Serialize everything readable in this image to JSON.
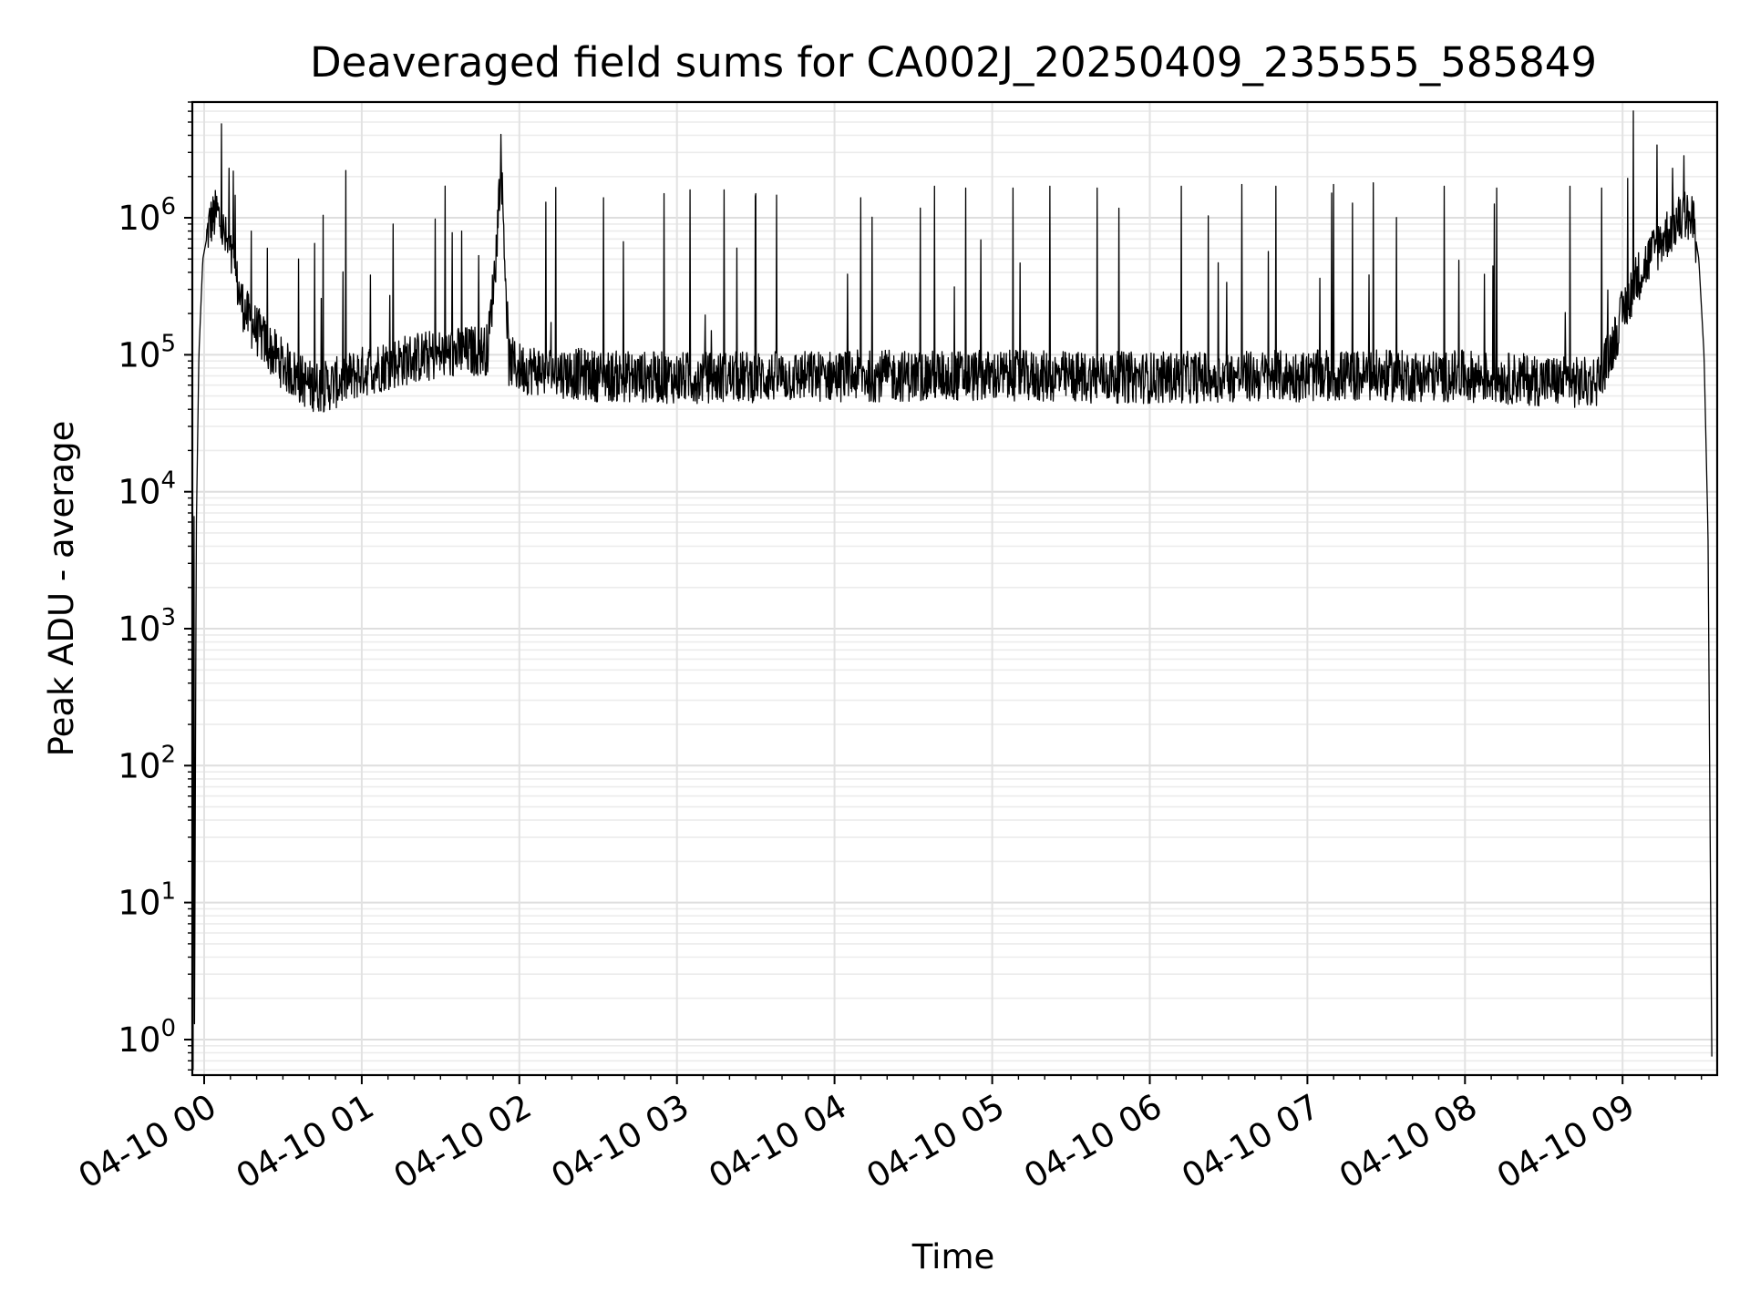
{
  "chart_data": {
    "type": "line",
    "title": "Deaveraged field sums for CA002J_20250409_235555_585849",
    "xlabel": "Time",
    "ylabel": "Peak ADU - average",
    "yscale": "log",
    "ylim": [
      0.55,
      7000000
    ],
    "xlim": [
      "04-09 23:55:30",
      "04-10 09:36:00"
    ],
    "xticks": [
      "04-10 00",
      "04-10 01",
      "04-10 02",
      "04-10 03",
      "04-10 04",
      "04-10 05",
      "04-10 06",
      "04-10 07",
      "04-10 08",
      "04-10 09"
    ],
    "yticks": [
      {
        "value": 1,
        "base": "10",
        "exp": "0"
      },
      {
        "value": 10,
        "base": "10",
        "exp": "1"
      },
      {
        "value": 100,
        "base": "10",
        "exp": "2"
      },
      {
        "value": 1000,
        "base": "10",
        "exp": "3"
      },
      {
        "value": 10000,
        "base": "10",
        "exp": "4"
      },
      {
        "value": 100000,
        "base": "10",
        "exp": "5"
      },
      {
        "value": 1000000,
        "base": "10",
        "exp": "6"
      }
    ],
    "grid": true,
    "line_color": "#000000",
    "series": [
      {
        "values": [
          {
            "t": "23:55:48",
            "y": 0.6
          },
          {
            "t": "23:56:06",
            "y": 130000
          },
          {
            "t": "23:56:20",
            "y": 1.2
          },
          {
            "t": "23:57:00",
            "y": 5000
          },
          {
            "t": "23:58:00",
            "y": 100000
          },
          {
            "t": "23:59:30",
            "y": 500000
          },
          {
            "t": "00:02:00",
            "y": 900000
          },
          {
            "t": "00:05:00",
            "y": 1100000
          },
          {
            "t": "00:08:00",
            "y": 700000
          },
          {
            "t": "00:11:00",
            "y": 450000
          },
          {
            "t": "00:14:00",
            "y": 250000
          },
          {
            "t": "00:17:00",
            "y": 180000
          },
          {
            "t": "00:20:00",
            "y": 150000
          },
          {
            "t": "00:25:00",
            "y": 110000
          },
          {
            "t": "00:30:00",
            "y": 85000
          },
          {
            "t": "00:35:00",
            "y": 70000
          },
          {
            "t": "00:40:00",
            "y": 60000
          },
          {
            "t": "00:45:00",
            "y": 58000
          },
          {
            "t": "00:50:00",
            "y": 62000
          },
          {
            "t": "00:55:00",
            "y": 68000
          },
          {
            "t": "01:00:00",
            "y": 75000
          },
          {
            "t": "01:10:00",
            "y": 85000
          },
          {
            "t": "01:20:00",
            "y": 95000
          },
          {
            "t": "01:30:00",
            "y": 100000
          },
          {
            "t": "01:40:00",
            "y": 105000
          },
          {
            "t": "01:48:00",
            "y": 110000
          },
          {
            "t": "01:51:00",
            "y": 500000
          },
          {
            "t": "01:53:00",
            "y": 2800000
          },
          {
            "t": "01:56:00",
            "y": 90000
          },
          {
            "t": "02:00:00",
            "y": 80000
          },
          {
            "t": "02:30:00",
            "y": 70000
          },
          {
            "t": "03:00:00",
            "y": 68000
          },
          {
            "t": "04:00:00",
            "y": 70000
          },
          {
            "t": "05:00:00",
            "y": 70000
          },
          {
            "t": "06:00:00",
            "y": 68000
          },
          {
            "t": "07:00:00",
            "y": 70000
          },
          {
            "t": "08:00:00",
            "y": 70000
          },
          {
            "t": "08:30:00",
            "y": 65000
          },
          {
            "t": "08:45:00",
            "y": 62000
          },
          {
            "t": "08:50:00",
            "y": 65000
          },
          {
            "t": "08:55:00",
            "y": 100000
          },
          {
            "t": "09:00:00",
            "y": 200000
          },
          {
            "t": "09:05:00",
            "y": 350000
          },
          {
            "t": "09:10:00",
            "y": 500000
          },
          {
            "t": "09:15:00",
            "y": 700000
          },
          {
            "t": "09:20:00",
            "y": 900000
          },
          {
            "t": "09:24:00",
            "y": 1050000
          },
          {
            "t": "09:27:00",
            "y": 900000
          },
          {
            "t": "09:29:00",
            "y": 500000
          },
          {
            "t": "09:31:00",
            "y": 100000
          },
          {
            "t": "09:32:30",
            "y": 5000
          },
          {
            "t": "09:33:30",
            "y": 10
          },
          {
            "t": "09:34:00",
            "y": 0.6
          }
        ]
      }
    ],
    "spikes": [
      {
        "t": "00:09:30",
        "y": 2300000
      },
      {
        "t": "00:18:00",
        "y": 800000
      },
      {
        "t": "00:24:00",
        "y": 600000
      },
      {
        "t": "00:36:00",
        "y": 500000
      },
      {
        "t": "00:42:00",
        "y": 650000
      },
      {
        "t": "01:12:00",
        "y": 900000
      },
      {
        "t": "01:38:00",
        "y": 800000
      },
      {
        "t": "02:10:00",
        "y": 1300000
      },
      {
        "t": "02:32:00",
        "y": 1400000
      },
      {
        "t": "02:55:00",
        "y": 1500000
      },
      {
        "t": "03:05:00",
        "y": 1600000
      },
      {
        "t": "03:18:00",
        "y": 1600000
      },
      {
        "t": "03:30:00",
        "y": 1500000
      },
      {
        "t": "04:10:00",
        "y": 1400000
      },
      {
        "t": "04:38:00",
        "y": 1700000
      },
      {
        "t": "04:50:00",
        "y": 1650000
      },
      {
        "t": "05:08:00",
        "y": 1650000
      },
      {
        "t": "05:22:00",
        "y": 1700000
      },
      {
        "t": "05:40:00",
        "y": 1650000
      },
      {
        "t": "06:12:00",
        "y": 1700000
      },
      {
        "t": "06:35:00",
        "y": 1750000
      },
      {
        "t": "06:48:00",
        "y": 1700000
      },
      {
        "t": "07:10:00",
        "y": 1750000
      },
      {
        "t": "07:25:00",
        "y": 1800000
      },
      {
        "t": "07:52:00",
        "y": 1700000
      },
      {
        "t": "08:12:00",
        "y": 1650000
      },
      {
        "t": "08:40:00",
        "y": 1700000
      },
      {
        "t": "08:52:00",
        "y": 1650000
      },
      {
        "t": "09:13:00",
        "y": 3400000
      },
      {
        "t": "09:19:00",
        "y": 2300000
      }
    ]
  }
}
